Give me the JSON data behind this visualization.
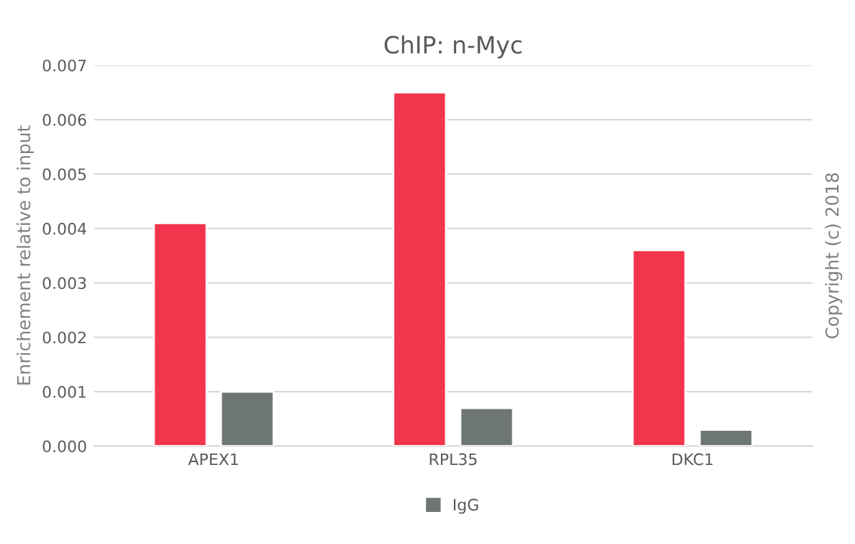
{
  "chart_data": {
    "type": "bar",
    "title": "ChIP: n-Myc",
    "ylabel": "Enrichement relative to input",
    "categories": [
      "APEX1",
      "RPL35",
      "DKC1"
    ],
    "series": [
      {
        "color": "#f2344c",
        "values": [
          0.0041,
          0.0065,
          0.0036
        ]
      },
      {
        "name": "IgG",
        "color": "#6e7675",
        "values": [
          0.001,
          0.0007,
          0.0003
        ]
      }
    ],
    "ylim": [
      0,
      0.007
    ],
    "yticks": [
      {
        "value": 0,
        "label": "0.000"
      },
      {
        "value": 0.001,
        "label": "0.001"
      },
      {
        "value": 0.002,
        "label": "0.002"
      },
      {
        "value": 0.003,
        "label": "0.003"
      },
      {
        "value": 0.004,
        "label": "0.004"
      },
      {
        "value": 0.005,
        "label": "0.005"
      },
      {
        "value": 0.006,
        "label": "0.006"
      },
      {
        "value": 0.007,
        "label": "0.007"
      }
    ],
    "grid": "y",
    "legend": "bottom",
    "annotations": [
      "Copyright (c) 2018"
    ]
  }
}
